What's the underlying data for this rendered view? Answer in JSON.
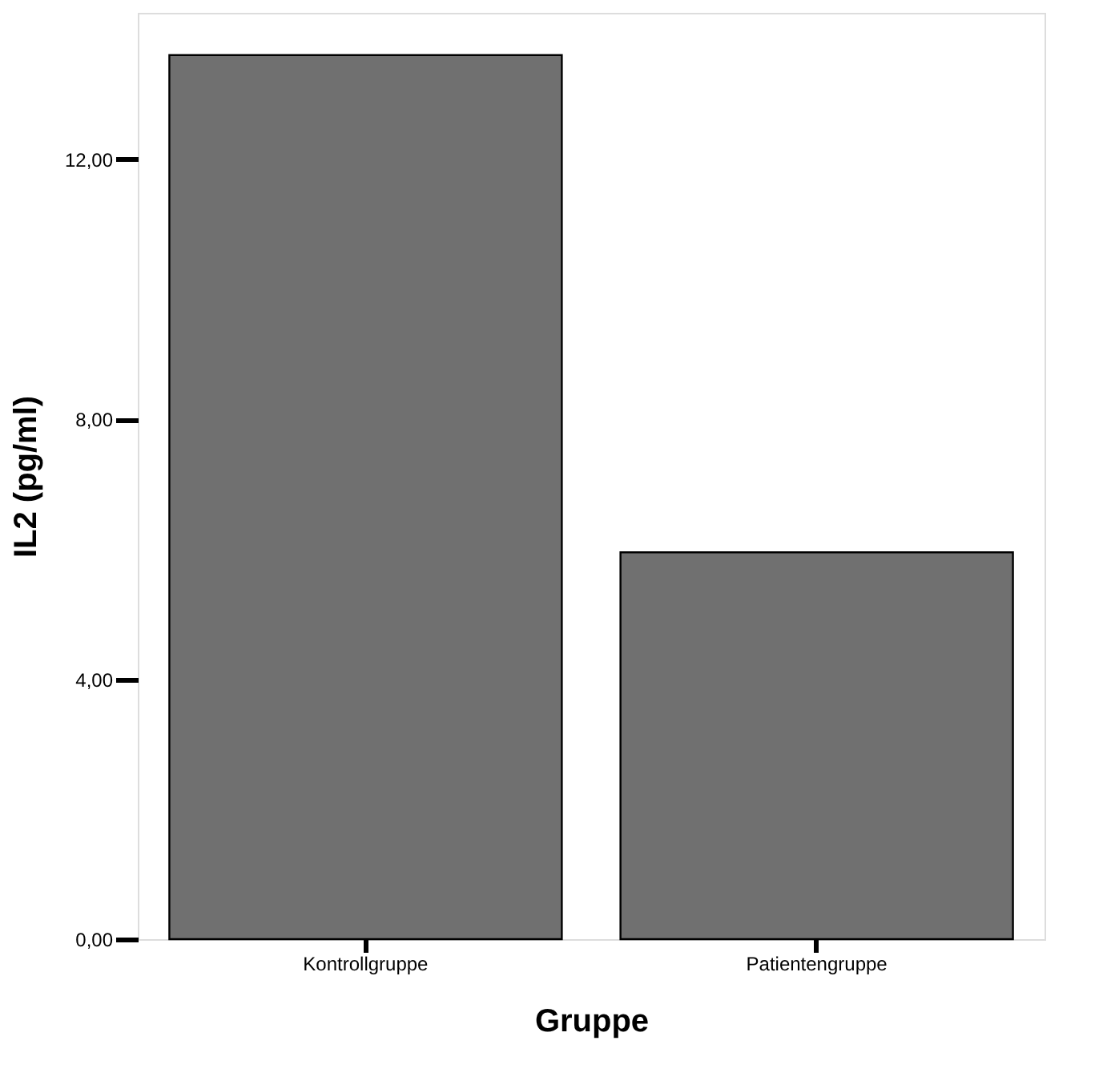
{
  "chart_data": {
    "type": "bar",
    "xlabel": "Gruppe",
    "ylabel": "IL2 (pg/ml)",
    "categories": [
      "Kontrollgruppe",
      "Patientengruppe"
    ],
    "values": [
      13.6,
      5.95
    ],
    "color": "#707070",
    "ylim": [
      0,
      14.25
    ],
    "yticks": [
      {
        "value": 0,
        "label": "0,00"
      },
      {
        "value": 4,
        "label": "4,00"
      },
      {
        "value": 8,
        "label": "8,00"
      },
      {
        "value": 12,
        "label": "12,00"
      }
    ],
    "grid": false
  }
}
